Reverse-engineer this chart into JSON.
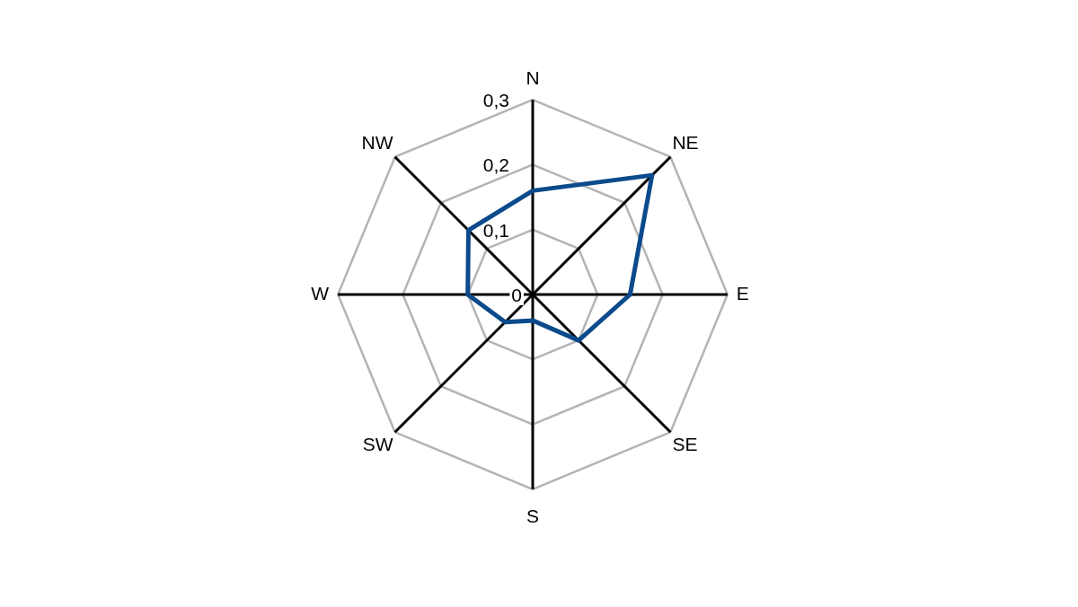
{
  "chart_data": {
    "type": "radar",
    "categories": [
      "N",
      "NE",
      "E",
      "SE",
      "S",
      "SW",
      "W",
      "NW"
    ],
    "series": [
      {
        "color": "#0b4a8b",
        "values": [
          0.16,
          0.26,
          0.15,
          0.1,
          0.04,
          0.06,
          0.1,
          0.14
        ]
      }
    ],
    "ylim": [
      0,
      0.3
    ],
    "yticks": [
      0,
      {
        "value": 0.1,
        "label": "0,1"
      },
      {
        "value": 0.2,
        "label": "0,2"
      },
      {
        "value": 0.3,
        "label": "0,3"
      }
    ],
    "grid": true,
    "marker": "none"
  }
}
